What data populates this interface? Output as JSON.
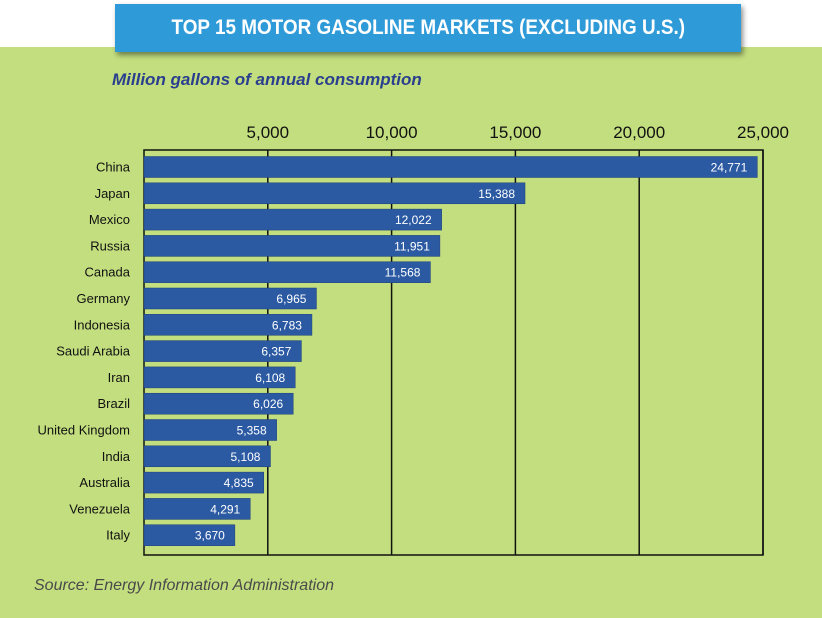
{
  "header": {
    "title": "TOP 15 MOTOR GASOLINE MARKETS (EXCLUDING U.S.)",
    "subtitle": "Million gallons of annual consumption",
    "source": "Source: Energy Information Administration"
  },
  "colors": {
    "panel": "#c3de7e",
    "banner": "#2f9ad8",
    "bar": "#2b5aa3",
    "subtitle": "#2a3f8e"
  },
  "chart_data": {
    "type": "bar",
    "orientation": "horizontal",
    "title": "TOP 15 MOTOR GASOLINE MARKETS (EXCLUDING U.S.)",
    "subtitle": "Million gallons of annual consumption",
    "categories": [
      "China",
      "Japan",
      "Mexico",
      "Russia",
      "Canada",
      "Germany",
      "Indonesia",
      "Saudi Arabia",
      "Iran",
      "Brazil",
      "United Kingdom",
      "India",
      "Australia",
      "Venezuela",
      "Italy"
    ],
    "values": [
      24771,
      15388,
      12022,
      11951,
      11568,
      6965,
      6783,
      6357,
      6108,
      6026,
      5358,
      5108,
      4835,
      4291,
      3670
    ],
    "value_labels": [
      "24,771",
      "15,388",
      "12,022",
      "11,951",
      "11,568",
      "6,965",
      "6,783",
      "6,357",
      "6,108",
      "6,026",
      "5,358",
      "5,108",
      "4,835",
      "4,291",
      "3,670"
    ],
    "ticks": [
      5000,
      10000,
      15000,
      20000,
      25000
    ],
    "tick_labels": [
      "5,000",
      "10,000",
      "15,000",
      "20,000",
      "25,000"
    ],
    "xlim": [
      0,
      25000
    ],
    "axis_position": "top",
    "grid": true,
    "legend": "none"
  }
}
